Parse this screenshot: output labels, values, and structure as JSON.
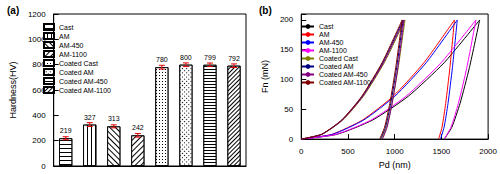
{
  "chart_data": [
    {
      "type": "bar",
      "title": "(a)",
      "categories": [
        "Cast",
        "AM",
        "AM-450",
        "AM-1100",
        "Coated Cast",
        "Coated AM",
        "Coated AM-450",
        "Coated AM-1100"
      ],
      "values": [
        219,
        327,
        313,
        242,
        780,
        800,
        799,
        792
      ],
      "errors": [
        12,
        15,
        12,
        14,
        15,
        14,
        14,
        14
      ],
      "color": "#000000",
      "ylabel": "Hardness(HV)",
      "ylim": [
        0,
        1200
      ],
      "yticks": [
        0,
        200,
        400,
        600,
        800,
        1000,
        1200
      ],
      "grid": false,
      "data_labels": true,
      "tick_labels": "y",
      "legend": "upper left"
    },
    {
      "type": "line",
      "title": "(b)",
      "xlabel": "Pd (nm)",
      "ylabel": "Fn (mN)",
      "xlim": [
        0,
        2000
      ],
      "xticks": [
        0,
        500,
        1000,
        1500,
        2000
      ],
      "ylim": [
        0,
        210
      ],
      "yticks": [
        0,
        50,
        100,
        150,
        200
      ],
      "grid": false,
      "legend": "upper left",
      "series": [
        {
          "name": "Cast",
          "color": "#000000",
          "x": [
            0,
            382,
            764,
            1146,
            1528,
            1910,
            1800,
            1700,
            1612,
            1530
          ],
          "values": [
            0,
            8,
            32,
            72,
            128,
            200,
            120,
            60,
            20,
            0
          ]
        },
        {
          "name": "AM",
          "color": "#ff0000",
          "x": [
            0,
            328,
            656,
            984,
            1312,
            1640,
            1591,
            1546,
            1507,
            1470
          ],
          "values": [
            0,
            8,
            32,
            72,
            128,
            200,
            120,
            60,
            20,
            0
          ]
        },
        {
          "name": "AM-450",
          "color": "#0000ff",
          "x": [
            0,
            334,
            668,
            1002,
            1336,
            1670,
            1618,
            1571,
            1529,
            1490
          ],
          "values": [
            0,
            8,
            32,
            72,
            128,
            200,
            120,
            60,
            20,
            0
          ]
        },
        {
          "name": "AM-1100",
          "color": "#ff00ff",
          "x": [
            0,
            374,
            748,
            1122,
            1496,
            1870,
            1772,
            1682,
            1603,
            1530
          ],
          "values": [
            0,
            8,
            32,
            72,
            128,
            200,
            120,
            60,
            20,
            0
          ]
        },
        {
          "name": "Coated Cast",
          "color": "#808000",
          "x": [
            0,
            222,
            444,
            666,
            888,
            1110,
            1038,
            972,
            914,
            860
          ],
          "values": [
            0,
            8,
            32,
            72,
            128,
            200,
            120,
            60,
            20,
            0
          ]
        },
        {
          "name": "Coated AM",
          "color": "#000080",
          "x": [
            0,
            218,
            436,
            654,
            872,
            1090,
            1021,
            958,
            902,
            850
          ],
          "values": [
            0,
            8,
            32,
            72,
            128,
            200,
            120,
            60,
            20,
            0
          ]
        },
        {
          "name": "Coated AM-450",
          "color": "#800080",
          "x": [
            0,
            220,
            440,
            660,
            880,
            1100,
            1034,
            973,
            919,
            870
          ],
          "values": [
            0,
            8,
            32,
            72,
            128,
            200,
            120,
            60,
            20,
            0
          ]
        },
        {
          "name": "Coated AM-1100",
          "color": "#800000",
          "x": [
            0,
            216,
            432,
            648,
            864,
            1080,
            1011,
            948,
            892,
            840
          ],
          "values": [
            0,
            8,
            32,
            72,
            128,
            200,
            120,
            60,
            20,
            0
          ]
        }
      ]
    }
  ]
}
